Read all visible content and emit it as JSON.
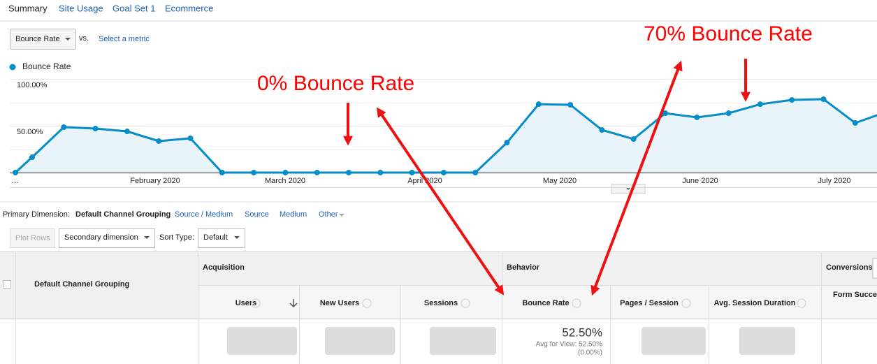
{
  "tabs": [
    "Summary",
    "Site Usage",
    "Goal Set 1",
    "Ecommerce"
  ],
  "metric_selector": {
    "selected": "Bounce Rate",
    "vs": "vs.",
    "link": "Select a metric"
  },
  "chart_data": {
    "type": "line",
    "categories": [
      null,
      null,
      null,
      null,
      null,
      null,
      null,
      null,
      null,
      null,
      null,
      null,
      null,
      null,
      null,
      null,
      null,
      null,
      null,
      null,
      null,
      null,
      null,
      null,
      null,
      null,
      null,
      null,
      null
    ],
    "x_labels": [
      "…",
      "February 2020",
      "March 2020",
      "April 2020",
      "May 2020",
      "June 2020",
      "July 2020"
    ],
    "series": [
      {
        "name": "Bounce Rate",
        "color": "#058dc7",
        "values": [
          0,
          16.4,
          48.5,
          47,
          44,
          33.6,
          36.6,
          0,
          0,
          0,
          0,
          0,
          0,
          0,
          0,
          0,
          32,
          73,
          72.4,
          45.5,
          35.8,
          63.4,
          59,
          63.4,
          73,
          77.6,
          78.4,
          53,
          65
        ]
      }
    ],
    "ylim": [
      0,
      100
    ],
    "yticks": [
      {
        "value": 100,
        "label": "100.00%"
      },
      {
        "value": 50,
        "label": "50.00%"
      }
    ],
    "annotations": [
      "0% Bounce Rate",
      "70% Bounce Rate"
    ]
  },
  "dimension_bar": {
    "label": "Primary Dimension:",
    "selected": "Default Channel Grouping",
    "options": [
      "Source / Medium",
      "Source",
      "Medium",
      "Other"
    ]
  },
  "controls": {
    "plot_rows": "Plot Rows",
    "secondary": "Secondary dimension",
    "sort_label": "Sort Type:",
    "sort": "Default"
  },
  "table": {
    "first_column": "Default Channel Grouping",
    "groups": [
      "Acquisition",
      "Behavior",
      "Conversions"
    ],
    "columns": [
      "Users",
      "New Users",
      "Sessions",
      "Bounce Rate",
      "Pages / Session",
      "Avg. Session Duration",
      "Form Succes"
    ],
    "total": {
      "value": "52.50%",
      "avg": "Avg for View: 52.50%",
      "change": "(0.00%)"
    }
  }
}
